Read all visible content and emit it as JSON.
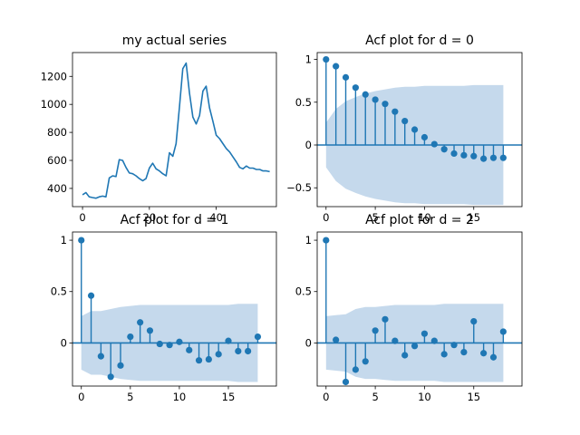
{
  "colors": {
    "line": "#1f77b4",
    "band": "#c5d9ec",
    "axes": "#000000",
    "background": "#ffffff"
  },
  "chart_data": [
    {
      "type": "line",
      "title": "my actual series",
      "xlabel": "",
      "ylabel": "",
      "xlim": [
        -3,
        58
      ],
      "ylim": [
        270,
        1370
      ],
      "xticks": [
        0,
        20,
        40
      ],
      "yticks": [
        400,
        600,
        800,
        1000,
        1200
      ],
      "x": [
        0,
        1,
        2,
        3,
        4,
        5,
        6,
        7,
        8,
        9,
        10,
        11,
        12,
        13,
        14,
        15,
        16,
        17,
        18,
        19,
        20,
        21,
        22,
        23,
        24,
        25,
        26,
        27,
        28,
        29,
        30,
        31,
        32,
        33,
        34,
        35,
        36,
        37,
        38,
        39,
        40,
        41,
        42,
        43,
        44,
        45,
        46,
        47,
        48,
        49,
        50,
        51,
        52,
        53,
        54,
        55,
        56
      ],
      "y": [
        355,
        370,
        340,
        335,
        330,
        340,
        345,
        340,
        475,
        490,
        485,
        605,
        600,
        550,
        510,
        505,
        490,
        470,
        455,
        470,
        545,
        580,
        540,
        525,
        505,
        490,
        655,
        630,
        720,
        980,
        1255,
        1295,
        1080,
        910,
        860,
        920,
        1095,
        1130,
        975,
        880,
        780,
        755,
        720,
        685,
        660,
        625,
        590,
        550,
        540,
        560,
        545,
        545,
        535,
        535,
        525,
        525,
        520
      ]
    },
    {
      "type": "stem",
      "title": "Acf plot for d = 0",
      "xlabel": "",
      "ylabel": "",
      "xlim": [
        -0.9,
        19.9
      ],
      "ylim": [
        -0.72,
        1.08
      ],
      "xticks": [
        0,
        5,
        10,
        15
      ],
      "yticks": [
        -0.5,
        0.0,
        0.5,
        1.0
      ],
      "lags": [
        0,
        1,
        2,
        3,
        4,
        5,
        6,
        7,
        8,
        9,
        10,
        11,
        12,
        13,
        14,
        15,
        16,
        17,
        18
      ],
      "values": [
        1.0,
        0.92,
        0.79,
        0.67,
        0.59,
        0.53,
        0.48,
        0.39,
        0.28,
        0.18,
        0.09,
        0.01,
        -0.05,
        -0.1,
        -0.12,
        -0.13,
        -0.16,
        -0.15,
        -0.15
      ],
      "confidence_band": [
        0.26,
        0.42,
        0.51,
        0.56,
        0.6,
        0.63,
        0.65,
        0.67,
        0.68,
        0.68,
        0.69,
        0.69,
        0.69,
        0.69,
        0.69,
        0.7,
        0.7,
        0.7,
        0.7
      ]
    },
    {
      "type": "stem",
      "title": "Acf plot for d = 1",
      "xlabel": "",
      "ylabel": "",
      "xlim": [
        -0.9,
        19.9
      ],
      "ylim": [
        -0.42,
        1.08
      ],
      "xticks": [
        0,
        5,
        10,
        15
      ],
      "yticks": [
        0.0,
        0.5,
        1.0
      ],
      "lags": [
        0,
        1,
        2,
        3,
        4,
        5,
        6,
        7,
        8,
        9,
        10,
        11,
        12,
        13,
        14,
        15,
        16,
        17,
        18
      ],
      "values": [
        1.0,
        0.46,
        -0.13,
        -0.33,
        -0.22,
        0.06,
        0.2,
        0.12,
        -0.01,
        -0.02,
        0.01,
        -0.07,
        -0.17,
        -0.16,
        -0.11,
        0.02,
        -0.08,
        -0.08,
        0.06
      ],
      "confidence_band": [
        0.26,
        0.31,
        0.31,
        0.33,
        0.35,
        0.36,
        0.37,
        0.37,
        0.37,
        0.37,
        0.37,
        0.37,
        0.37,
        0.37,
        0.37,
        0.37,
        0.38,
        0.38,
        0.38
      ]
    },
    {
      "type": "stem",
      "title": "Acf plot for d = 2",
      "xlabel": "",
      "ylabel": "",
      "xlim": [
        -0.9,
        19.9
      ],
      "ylim": [
        -0.42,
        1.08
      ],
      "xticks": [
        0,
        5,
        10,
        15
      ],
      "yticks": [
        0.0,
        0.5,
        1.0
      ],
      "lags": [
        0,
        1,
        2,
        3,
        4,
        5,
        6,
        7,
        8,
        9,
        10,
        11,
        12,
        13,
        14,
        15,
        16,
        17,
        18
      ],
      "values": [
        1.0,
        0.03,
        -0.38,
        -0.26,
        -0.18,
        0.12,
        0.23,
        0.02,
        -0.12,
        -0.03,
        0.09,
        0.02,
        -0.11,
        -0.02,
        -0.09,
        0.21,
        -0.1,
        -0.14,
        0.11
      ],
      "confidence_band": [
        0.26,
        0.27,
        0.28,
        0.33,
        0.35,
        0.35,
        0.36,
        0.37,
        0.37,
        0.37,
        0.37,
        0.37,
        0.38,
        0.38,
        0.38,
        0.38,
        0.38,
        0.38,
        0.38
      ]
    }
  ]
}
